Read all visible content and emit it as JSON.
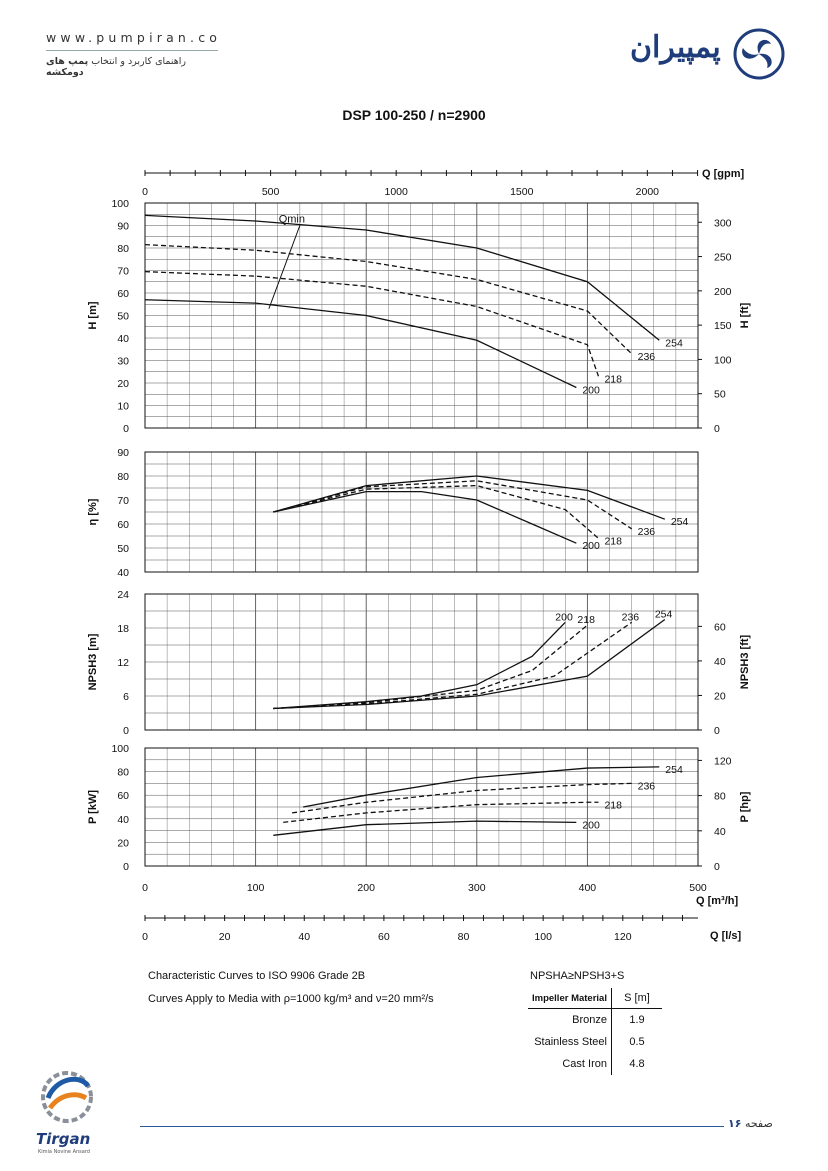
{
  "header": {
    "site": "www.pumpiran.co",
    "tagline_plain": "راهنمای کاربرد و انتخاب ",
    "tagline_bold": "پمپ های دومکشه",
    "logo_text": "پمپیران",
    "logo_icon": "pumpiran-swirl-icon",
    "brand_color": "#1f3d7a"
  },
  "title": "DSP 100-250 / n=2900",
  "axes": {
    "q_gpm": {
      "label": "Q [gpm]",
      "ticks": [
        "0",
        "500",
        "1000",
        "1500",
        "2000"
      ]
    },
    "q_m3h": {
      "label": "Q [m³/h]",
      "ticks": [
        "0",
        "100",
        "200",
        "300",
        "400",
        "500"
      ]
    },
    "q_ls": {
      "label": "Q [l/s]",
      "ticks": [
        "0",
        "20",
        "40",
        "60",
        "80",
        "100",
        "120"
      ]
    }
  },
  "chart_data": [
    {
      "type": "line",
      "title": "",
      "xlabel": "Q [m³/h]",
      "ylabel": "H [m]",
      "ylabel_right": "H [ft]",
      "xlim": [
        0,
        500
      ],
      "ylim": [
        0,
        100
      ],
      "yticks": [
        "0",
        "10",
        "20",
        "30",
        "40",
        "50",
        "60",
        "70",
        "80",
        "90",
        "100"
      ],
      "yticks_right": [
        "0",
        "50",
        "100",
        "150",
        "200",
        "250",
        "300"
      ],
      "annotation": "Qmin",
      "series": [
        {
          "name": "254",
          "style": "solid",
          "points": [
            [
              0,
              94.5
            ],
            [
              100,
              92
            ],
            [
              200,
              88
            ],
            [
              300,
              80
            ],
            [
              400,
              65
            ],
            [
              465,
              39
            ]
          ]
        },
        {
          "name": "236",
          "style": "dashed",
          "points": [
            [
              0,
              81.5
            ],
            [
              100,
              79
            ],
            [
              200,
              74
            ],
            [
              300,
              66
            ],
            [
              400,
              52
            ],
            [
              440,
              33
            ]
          ]
        },
        {
          "name": "218",
          "style": "dashed",
          "points": [
            [
              0,
              69.5
            ],
            [
              100,
              67.5
            ],
            [
              200,
              63
            ],
            [
              300,
              54
            ],
            [
              400,
              37
            ],
            [
              410,
              23
            ]
          ]
        },
        {
          "name": "200",
          "style": "solid",
          "points": [
            [
              0,
              57
            ],
            [
              100,
              55.5
            ],
            [
              200,
              50
            ],
            [
              300,
              39
            ],
            [
              390,
              18
            ]
          ]
        }
      ],
      "qmin_line": [
        [
          112,
          53
        ],
        [
          140,
          90
        ]
      ]
    },
    {
      "type": "line",
      "title": "",
      "xlabel": "Q [m³/h]",
      "ylabel": "η [%]",
      "xlim": [
        0,
        500
      ],
      "ylim": [
        40,
        90
      ],
      "yticks": [
        "40",
        "50",
        "60",
        "70",
        "80",
        "90"
      ],
      "series": [
        {
          "name": "254",
          "style": "solid",
          "points": [
            [
              116,
              65
            ],
            [
              200,
              76
            ],
            [
              300,
              80
            ],
            [
              400,
              74
            ],
            [
              470,
              62
            ]
          ]
        },
        {
          "name": "236",
          "style": "dashed",
          "points": [
            [
              116,
              65
            ],
            [
              200,
              75.5
            ],
            [
              300,
              78
            ],
            [
              400,
              70
            ],
            [
              440,
              58
            ]
          ]
        },
        {
          "name": "218",
          "style": "dashed",
          "points": [
            [
              116,
              65
            ],
            [
              200,
              74.5
            ],
            [
              300,
              76
            ],
            [
              380,
              66
            ],
            [
              410,
              54
            ]
          ]
        },
        {
          "name": "200",
          "style": "solid",
          "points": [
            [
              116,
              65
            ],
            [
              200,
              73.5
            ],
            [
              250,
              73.5
            ],
            [
              300,
              70
            ],
            [
              350,
              60
            ],
            [
              390,
              52
            ]
          ]
        }
      ]
    },
    {
      "type": "line",
      "title": "",
      "xlabel": "Q [m³/h]",
      "ylabel": "NPSH3 [m]",
      "ylabel_right": "NPSH3 [ft]",
      "xlim": [
        0,
        500
      ],
      "ylim": [
        0,
        24
      ],
      "yticks": [
        "0",
        "6",
        "12",
        "18",
        "24"
      ],
      "yticks_right": [
        "0",
        "20",
        "40",
        "60"
      ],
      "series": [
        {
          "name": "200",
          "style": "solid",
          "points": [
            [
              116,
              3.8
            ],
            [
              200,
              5
            ],
            [
              250,
              6
            ],
            [
              300,
              8
            ],
            [
              350,
              13
            ],
            [
              380,
              19
            ]
          ]
        },
        {
          "name": "218",
          "style": "dashed",
          "points": [
            [
              116,
              3.8
            ],
            [
              200,
              4.8
            ],
            [
              300,
              7
            ],
            [
              350,
              10.5
            ],
            [
              400,
              18.5
            ]
          ]
        },
        {
          "name": "236",
          "style": "dashed",
          "points": [
            [
              116,
              3.8
            ],
            [
              200,
              4.6
            ],
            [
              300,
              6.3
            ],
            [
              370,
              9.5
            ],
            [
              440,
              19
            ]
          ]
        },
        {
          "name": "254",
          "style": "solid",
          "points": [
            [
              116,
              3.8
            ],
            [
              200,
              4.5
            ],
            [
              300,
              6
            ],
            [
              400,
              9.5
            ],
            [
              470,
              19.5
            ]
          ]
        }
      ]
    },
    {
      "type": "line",
      "title": "",
      "xlabel": "Q [m³/h]",
      "ylabel": "P [kW]",
      "ylabel_right": "P [hp]",
      "xlim": [
        0,
        500
      ],
      "ylim": [
        0,
        100
      ],
      "yticks": [
        "0",
        "20",
        "40",
        "60",
        "80",
        "100"
      ],
      "yticks_right": [
        "0",
        "40",
        "80",
        "120"
      ],
      "series": [
        {
          "name": "254",
          "style": "solid",
          "points": [
            [
              143,
              50
            ],
            [
              200,
              60
            ],
            [
              300,
              75
            ],
            [
              400,
              83
            ],
            [
              465,
              84
            ]
          ]
        },
        {
          "name": "236",
          "style": "dashed",
          "points": [
            [
              133,
              45
            ],
            [
              200,
              54
            ],
            [
              300,
              64
            ],
            [
              400,
              69
            ],
            [
              440,
              70
            ]
          ]
        },
        {
          "name": "218",
          "style": "dashed",
          "points": [
            [
              125,
              37
            ],
            [
              200,
              45
            ],
            [
              300,
              52
            ],
            [
              400,
              54
            ],
            [
              410,
              54
            ]
          ]
        },
        {
          "name": "200",
          "style": "solid",
          "points": [
            [
              116,
              26
            ],
            [
              200,
              35
            ],
            [
              300,
              38
            ],
            [
              390,
              37
            ]
          ]
        }
      ]
    }
  ],
  "notes": {
    "line1": "Characteristic Curves to ISO 9906 Grade 2B",
    "line2": "Curves Apply to Media with  ρ=1000 kg/m³ and ν=20 mm²/s",
    "npsh_eq": "NPSHA≥NPSH3+S"
  },
  "s_table": {
    "header_material": "Impeller Material",
    "header_s": "S [m]",
    "rows": [
      {
        "material": "Bronze",
        "s": "1.9"
      },
      {
        "material": "Stainless Steel",
        "s": "0.5"
      },
      {
        "material": "Cast Iron",
        "s": "4.8"
      }
    ]
  },
  "footer": {
    "page_word": "صفحه",
    "page_num": "۱۶",
    "brand": "Tirgan",
    "brand_sub": "Kimia Novine Ansard",
    "brand_icon": "tirgan-gear-icon"
  }
}
